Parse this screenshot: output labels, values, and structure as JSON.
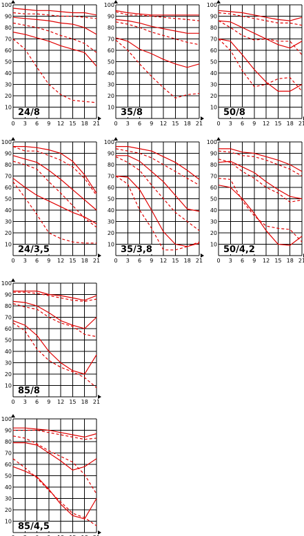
{
  "chart_data": [
    {
      "type": "line",
      "title": "",
      "label": "24/8",
      "x": [
        0,
        3,
        6,
        9,
        12,
        15,
        18,
        21
      ],
      "xlim": [
        0,
        21
      ],
      "ylim": [
        0,
        100
      ],
      "x_ticks": [
        "0",
        "3",
        "6",
        "9",
        "12",
        "15",
        "18",
        "21"
      ],
      "y_ticks": [
        "10",
        "20",
        "30",
        "40",
        "50",
        "60",
        "70",
        "80",
        "90",
        "100"
      ],
      "grid": true,
      "series": [
        {
          "style": "solid",
          "values": [
            97,
            96,
            95,
            95,
            94,
            93,
            93,
            91
          ]
        },
        {
          "style": "dashed",
          "values": [
            93,
            92,
            92,
            91,
            90,
            90,
            89,
            88
          ]
        },
        {
          "style": "solid",
          "values": [
            89,
            88,
            87,
            86,
            84,
            83,
            80,
            74
          ]
        },
        {
          "style": "dashed",
          "values": [
            84,
            82,
            80,
            77,
            73,
            70,
            66,
            58
          ]
        },
        {
          "style": "solid",
          "values": [
            76,
            74,
            71,
            68,
            64,
            61,
            58,
            46
          ]
        },
        {
          "style": "dashed",
          "values": [
            70,
            61,
            45,
            30,
            21,
            16,
            15,
            14
          ]
        }
      ]
    },
    {
      "type": "line",
      "title": "",
      "label": "35/8",
      "x": [
        0,
        3,
        6,
        9,
        12,
        15,
        18,
        21
      ],
      "xlim": [
        0,
        21
      ],
      "ylim": [
        0,
        100
      ],
      "x_ticks": [
        "0",
        "3",
        "6",
        "9",
        "12",
        "15",
        "18",
        "21"
      ],
      "y_ticks": [
        "10",
        "20",
        "30",
        "40",
        "50",
        "60",
        "70",
        "80",
        "90",
        "100"
      ],
      "grid": true,
      "series": [
        {
          "style": "solid",
          "values": [
            95,
            93,
            92,
            91,
            91,
            91,
            91,
            91
          ]
        },
        {
          "style": "dashed",
          "values": [
            94,
            91,
            91,
            90,
            89,
            88,
            87,
            86
          ]
        },
        {
          "style": "solid",
          "values": [
            87,
            86,
            84,
            81,
            79,
            77,
            75,
            75
          ]
        },
        {
          "style": "dashed",
          "values": [
            85,
            83,
            80,
            76,
            73,
            70,
            67,
            65
          ]
        },
        {
          "style": "solid",
          "values": [
            71,
            68,
            61,
            57,
            52,
            48,
            45,
            48
          ]
        },
        {
          "style": "dashed",
          "values": [
            69,
            60,
            48,
            37,
            27,
            18,
            21,
            22
          ]
        }
      ]
    },
    {
      "type": "line",
      "title": "",
      "label": "50/8",
      "x": [
        0,
        3,
        6,
        9,
        12,
        15,
        18,
        21
      ],
      "xlim": [
        0,
        21
      ],
      "ylim": [
        0,
        100
      ],
      "x_ticks": [
        "0",
        "3",
        "6",
        "9",
        "12",
        "15",
        "18",
        "21"
      ],
      "y_ticks": [
        "10",
        "20",
        "30",
        "40",
        "50",
        "60",
        "70",
        "80",
        "90",
        "100"
      ],
      "grid": true,
      "series": [
        {
          "style": "solid",
          "values": [
            95,
            94,
            93,
            91,
            89,
            87,
            86,
            89
          ]
        },
        {
          "style": "dashed",
          "values": [
            93,
            92,
            90,
            88,
            86,
            84,
            84,
            82
          ]
        },
        {
          "style": "solid",
          "values": [
            86,
            85,
            80,
            75,
            70,
            65,
            62,
            68
          ]
        },
        {
          "style": "dashed",
          "values": [
            86,
            80,
            73,
            69,
            70,
            68,
            68,
            56
          ]
        },
        {
          "style": "solid",
          "values": [
            70,
            68,
            56,
            43,
            32,
            24,
            24,
            30
          ]
        },
        {
          "style": "dashed",
          "values": [
            70,
            60,
            42,
            28,
            30,
            35,
            36,
            24
          ]
        }
      ]
    },
    {
      "type": "line",
      "title": "",
      "label": "24/3,5",
      "x": [
        0,
        3,
        6,
        9,
        12,
        15,
        18,
        21
      ],
      "xlim": [
        0,
        21
      ],
      "ylim": [
        0,
        100
      ],
      "x_ticks": [
        "0",
        "3",
        "6",
        "9",
        "12",
        "15",
        "18",
        "21"
      ],
      "y_ticks": [
        "10",
        "20",
        "30",
        "40",
        "50",
        "60",
        "70",
        "80",
        "90",
        "100"
      ],
      "grid": true,
      "series": [
        {
          "style": "solid",
          "values": [
            96,
            96,
            95,
            93,
            90,
            83,
            71,
            55
          ]
        },
        {
          "style": "dashed",
          "values": [
            96,
            92,
            92,
            88,
            84,
            78,
            68,
            53
          ]
        },
        {
          "style": "solid",
          "values": [
            88,
            85,
            82,
            75,
            67,
            58,
            49,
            40
          ]
        },
        {
          "style": "dashed",
          "values": [
            83,
            80,
            76,
            65,
            55,
            44,
            33,
            25
          ]
        },
        {
          "style": "solid",
          "values": [
            68,
            60,
            53,
            48,
            43,
            38,
            34,
            28
          ]
        },
        {
          "style": "dashed",
          "values": [
            65,
            51,
            36,
            20,
            15,
            12,
            11,
            11
          ]
        }
      ]
    },
    {
      "type": "line",
      "title": "",
      "label": "35/3,8",
      "x": [
        0,
        3,
        6,
        9,
        12,
        15,
        18,
        21
      ],
      "xlim": [
        0,
        21
      ],
      "ylim": [
        0,
        100
      ],
      "x_ticks": [
        "0",
        "3",
        "6",
        "9",
        "12",
        "15",
        "18",
        "21"
      ],
      "y_ticks": [
        "10",
        "20",
        "30",
        "40",
        "50",
        "60",
        "70",
        "80",
        "90",
        "100"
      ],
      "grid": true,
      "series": [
        {
          "style": "solid",
          "values": [
            96,
            96,
            94,
            92,
            87,
            82,
            75,
            67
          ]
        },
        {
          "style": "dashed",
          "values": [
            94,
            92,
            90,
            86,
            80,
            74,
            68,
            62
          ]
        },
        {
          "style": "solid",
          "values": [
            88,
            88,
            83,
            74,
            65,
            53,
            41,
            39
          ]
        },
        {
          "style": "dashed",
          "values": [
            87,
            82,
            75,
            62,
            50,
            38,
            30,
            22
          ]
        },
        {
          "style": "solid",
          "values": [
            70,
            69,
            58,
            40,
            21,
            10,
            8,
            11
          ]
        },
        {
          "style": "dashed",
          "values": [
            70,
            63,
            40,
            24,
            5,
            5,
            8,
            12
          ]
        }
      ]
    },
    {
      "type": "line",
      "title": "",
      "label": "50/4,2",
      "x": [
        0,
        3,
        6,
        9,
        12,
        15,
        18,
        21
      ],
      "xlim": [
        0,
        21
      ],
      "ylim": [
        0,
        100
      ],
      "x_ticks": [
        "0",
        "3",
        "6",
        "9",
        "12",
        "15",
        "18",
        "21"
      ],
      "y_ticks": [
        "10",
        "20",
        "30",
        "40",
        "50",
        "60",
        "70",
        "80",
        "90",
        "100"
      ],
      "grid": true,
      "series": [
        {
          "style": "solid",
          "values": [
            94,
            94,
            91,
            90,
            87,
            84,
            80,
            74
          ]
        },
        {
          "style": "dashed",
          "values": [
            92,
            91,
            88,
            87,
            84,
            80,
            76,
            70
          ]
        },
        {
          "style": "solid",
          "values": [
            82,
            83,
            78,
            73,
            65,
            58,
            52,
            50
          ]
        },
        {
          "style": "dashed",
          "values": [
            85,
            82,
            74,
            68,
            60,
            55,
            47,
            49
          ]
        },
        {
          "style": "solid",
          "values": [
            62,
            60,
            50,
            37,
            22,
            10,
            9,
            17
          ]
        },
        {
          "style": "dashed",
          "values": [
            68,
            67,
            48,
            35,
            26,
            24,
            23,
            12
          ]
        }
      ]
    },
    {
      "type": "line",
      "title": "",
      "label": "85/8",
      "x": [
        0,
        3,
        6,
        9,
        12,
        15,
        18,
        21
      ],
      "xlim": [
        0,
        21
      ],
      "ylim": [
        0,
        100
      ],
      "x_ticks": [
        "0",
        "3",
        "6",
        "9",
        "12",
        "15",
        "18",
        "21"
      ],
      "y_ticks": [
        "10",
        "20",
        "30",
        "40",
        "50",
        "60",
        "70",
        "80",
        "90",
        "100"
      ],
      "grid": true,
      "series": [
        {
          "style": "solid",
          "values": [
            93,
            93,
            93,
            90,
            89,
            87,
            85,
            89
          ]
        },
        {
          "style": "dashed",
          "values": [
            92,
            92,
            91,
            89,
            87,
            85,
            84,
            86
          ]
        },
        {
          "style": "solid",
          "values": [
            84,
            83,
            80,
            74,
            67,
            63,
            60,
            70
          ]
        },
        {
          "style": "dashed",
          "values": [
            82,
            79,
            77,
            70,
            65,
            62,
            55,
            53
          ]
        },
        {
          "style": "solid",
          "values": [
            67,
            63,
            54,
            40,
            30,
            23,
            20,
            37
          ]
        },
        {
          "style": "dashed",
          "values": [
            65,
            58,
            42,
            32,
            26,
            22,
            17,
            8
          ]
        }
      ]
    },
    {
      "type": "line",
      "title": "",
      "label": "85/4,5",
      "x": [
        0,
        3,
        6,
        9,
        12,
        15,
        18,
        21
      ],
      "xlim": [
        0,
        21
      ],
      "ylim": [
        0,
        100
      ],
      "x_ticks": [
        "0",
        "3",
        "6",
        "9",
        "12",
        "15",
        "18",
        "21"
      ],
      "y_ticks": [
        "10",
        "20",
        "30",
        "40",
        "50",
        "60",
        "70",
        "80",
        "90",
        "100"
      ],
      "grid": true,
      "series": [
        {
          "style": "solid",
          "values": [
            92,
            92,
            91,
            90,
            88,
            86,
            84,
            87
          ]
        },
        {
          "style": "dashed",
          "values": [
            90,
            90,
            90,
            88,
            86,
            84,
            82,
            83
          ]
        },
        {
          "style": "solid",
          "values": [
            79,
            79,
            77,
            70,
            63,
            55,
            58,
            65
          ]
        },
        {
          "style": "dashed",
          "values": [
            85,
            83,
            78,
            72,
            67,
            62,
            51,
            34
          ]
        },
        {
          "style": "solid",
          "values": [
            58,
            54,
            49,
            38,
            25,
            15,
            12,
            30
          ]
        },
        {
          "style": "dashed",
          "values": [
            65,
            57,
            48,
            37,
            27,
            17,
            13,
            6
          ]
        }
      ]
    }
  ]
}
